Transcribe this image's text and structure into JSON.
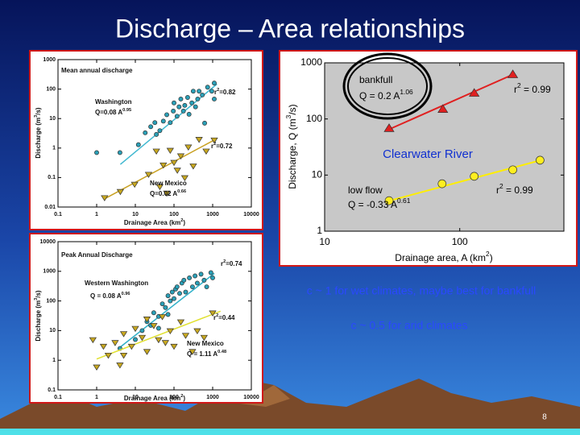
{
  "title": "Discharge – Area relationships",
  "slide_number": "8",
  "captions": [
    "c ~ 1 for wet climates, maybe best for bankfull",
    "c ~ 0.5 for arid climates"
  ],
  "chart_data": [
    {
      "type": "scatter",
      "title": "Mean annual discharge",
      "x_label": [
        "Drainage Area (km",
        {
          "sup": "2"
        },
        ")"
      ],
      "y_label": [
        "Discharge (m",
        {
          "sup": "3"
        },
        "/s)"
      ],
      "log_x": true,
      "log_y": true,
      "xlim": [
        0.1,
        10000
      ],
      "ylim": [
        0.01,
        1000
      ],
      "xticks": [
        0.1,
        1,
        10,
        100,
        1000,
        10000
      ],
      "yticks": [
        0.01,
        0.1,
        1,
        10,
        100,
        1000
      ],
      "series": [
        {
          "name": "Washington",
          "color": "#2aa0b8",
          "marker": "circle",
          "x": [
            1,
            4,
            12,
            18,
            25,
            32,
            43,
            53,
            65,
            80,
            96,
            100,
            120,
            135,
            150,
            175,
            190,
            225,
            245,
            290,
            315,
            360,
            410,
            445,
            540,
            620,
            740,
            950,
            1100,
            1100,
            35
          ],
          "values": [
            0.7,
            0.7,
            1.3,
            3.3,
            5.3,
            7.3,
            3.9,
            8.2,
            13.5,
            7.3,
            18,
            34,
            12,
            25,
            46,
            18,
            28,
            52,
            14,
            34,
            85,
            25,
            46,
            85,
            63,
            7,
            116,
            85,
            160,
            46,
            2.9
          ],
          "equation": [
            "Q=0.08 A",
            {
              "sup": "0.95"
            }
          ],
          "r2": [
            "r",
            {
              "sup": "2"
            },
            "=0.82"
          ],
          "fit": {
            "color": "#40b8d0",
            "x": [
              4.1,
              1290
            ],
            "values": [
              0.28,
              148
            ]
          }
        },
        {
          "name": "New Mexico",
          "color": "#c8a820",
          "marker": "triangle-down",
          "x": [
            1.6,
            4.1,
            9.6,
            22,
            35,
            53,
            80,
            100,
            122,
            150,
            190,
            235,
            315,
            445,
            680,
            1100,
            43,
            65
          ],
          "values": [
            0.021,
            0.034,
            0.06,
            0.13,
            0.8,
            0.27,
            0.85,
            0.33,
            0.18,
            0.55,
            0.1,
            1.1,
            0.25,
            2.0,
            0.8,
            1.9,
            0.05,
            0.03
          ],
          "equation": [
            "Q=0.02 A",
            {
              "sup": "0.66"
            }
          ],
          "r2": [
            "r",
            {
              "sup": "2"
            },
            "=0.72"
          ],
          "fit": {
            "color": "#c8a020",
            "x": [
              1.6,
              1290
            ],
            "values": [
              0.019,
              2.1
            ]
          }
        }
      ]
    },
    {
      "type": "scatter",
      "title": "Peak Annual Discharge",
      "x_label": [
        "Drainage Area (km",
        {
          "sup": "2"
        },
        ")"
      ],
      "y_label": [
        "Discharge (m",
        {
          "sup": "3"
        },
        "/s)"
      ],
      "log_x": true,
      "log_y": true,
      "xlim": [
        0.1,
        10000
      ],
      "ylim": [
        0.1,
        10000
      ],
      "xticks": [
        0.1,
        1,
        10,
        100,
        1000,
        10000
      ],
      "yticks": [
        0.1,
        1,
        10,
        100,
        1000,
        10000
      ],
      "series": [
        {
          "name": "Western Washington",
          "color": "#2aa0b8",
          "marker": "circle",
          "x": [
            4,
            10,
            15,
            20,
            25,
            30,
            40,
            50,
            60,
            70,
            80,
            90,
            100,
            110,
            120,
            140,
            160,
            180,
            200,
            250,
            300,
            350,
            400,
            500,
            600,
            700,
            900,
            1000,
            40,
            70
          ],
          "values": [
            2.5,
            5,
            10,
            20,
            15,
            40,
            30,
            80,
            60,
            150,
            100,
            200,
            120,
            250,
            300,
            180,
            400,
            500,
            200,
            600,
            300,
            700,
            400,
            800,
            500,
            300,
            900,
            600,
            12,
            35
          ],
          "equation": [
            "Q = 0.08 A",
            {
              "sup": "0.96"
            }
          ],
          "r2": [
            "r",
            {
              "sup": "2"
            },
            "=0.74"
          ],
          "fit": {
            "color": "#30b0c8",
            "x": [
              4.1,
              1100
            ],
            "values": [
              2.8,
              850
            ]
          }
        },
        {
          "name": "New Mexico",
          "color": "#c8a820",
          "marker": "triangle-down",
          "x": [
            0.8,
            1,
            1.5,
            2,
            3,
            4,
            5,
            8,
            10,
            15,
            20,
            30,
            40,
            50,
            60,
            80,
            100,
            150,
            200,
            300,
            400,
            600,
            1000,
            5,
            20
          ],
          "values": [
            5,
            0.6,
            3,
            1.5,
            4,
            0.7,
            8,
            3,
            12,
            6,
            2,
            15,
            5,
            30,
            4,
            10,
            3,
            20,
            7,
            2,
            10,
            6,
            40,
            1.5,
            25
          ],
          "equation": [
            "Q = 1.11 A",
            {
              "sup": "0.48"
            }
          ],
          "r2": [
            "r",
            {
              "sup": "2"
            },
            "=0.44"
          ],
          "fit": {
            "color": "#e0e030",
            "x": [
              1,
              1600
            ],
            "values": [
              1.1,
              45
            ]
          }
        }
      ]
    },
    {
      "type": "scatter",
      "x_label": [
        "Drainage area, A (km",
        {
          "sup": "2"
        },
        ")"
      ],
      "y_label": [
        "Discharge, Q (m",
        {
          "sup": "3"
        },
        "/s)"
      ],
      "log_x": true,
      "log_y": true,
      "xlim": [
        10,
        590
      ],
      "ylim": [
        1,
        1000
      ],
      "xticks": [
        10,
        100
      ],
      "yticks": [
        1,
        10,
        100,
        1000
      ],
      "annotation": "Clearwater River",
      "series": [
        {
          "name": "bankfull",
          "color": "#e02020",
          "marker": "triangle-up",
          "x": [
            30,
            75,
            128,
            247
          ],
          "values": [
            67,
            147,
            285,
            610
          ],
          "equation": [
            "Q = 0.2 A",
            {
              "sup": "1.06"
            }
          ],
          "r2": [
            "r",
            {
              "sup": "2"
            },
            " = 0.99"
          ],
          "fit": {
            "color": "#e02020",
            "x": [
              29,
              255
            ],
            "values": [
              63,
              640
            ]
          }
        },
        {
          "name": "low flow",
          "color": "#ffee20",
          "marker": "circle",
          "x": [
            30,
            74,
            128,
            247,
            393
          ],
          "values": [
            3.5,
            7.0,
            9.5,
            12.4,
            18.4
          ],
          "equation": [
            "Q = -0.33 A",
            {
              "sup": "0.61"
            }
          ],
          "r2": [
            "r",
            {
              "sup": "2"
            },
            " = 0.99"
          ],
          "fit": {
            "color": "#ffee00",
            "x": [
              29,
              398
            ],
            "values": [
              3.4,
              18.4
            ]
          }
        }
      ]
    }
  ]
}
